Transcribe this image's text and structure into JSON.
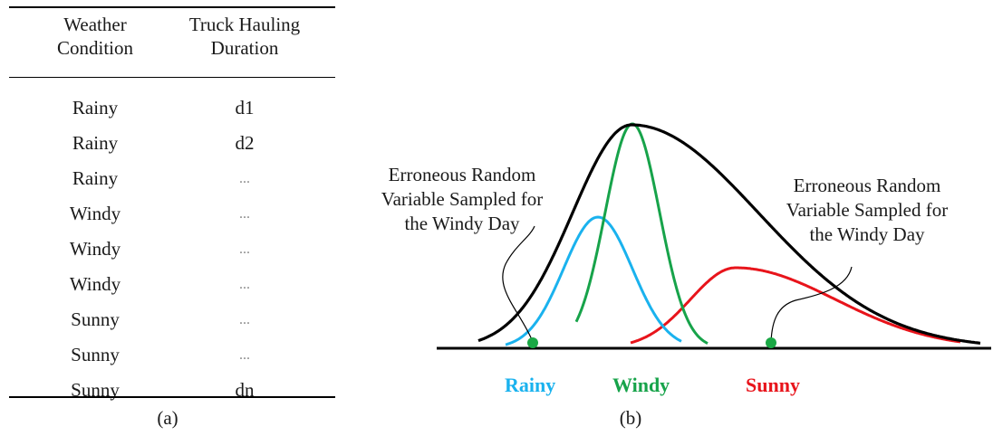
{
  "table": {
    "headers": [
      "Weather\nCondition",
      "Truck Hauling\nDuration"
    ],
    "rows": [
      [
        "Rainy",
        "d1"
      ],
      [
        "Rainy",
        "d2"
      ],
      [
        "Rainy",
        "..."
      ],
      [
        "Windy",
        "..."
      ],
      [
        "Windy",
        "..."
      ],
      [
        "Windy",
        "..."
      ],
      [
        "Sunny",
        "..."
      ],
      [
        "Sunny",
        "..."
      ],
      [
        "Sunny",
        "dn"
      ]
    ],
    "caption": "(a)"
  },
  "diagram": {
    "caption": "(b)",
    "annotation_left": "Erroneous Random\nVariable Sampled for\nthe Windy Day",
    "annotation_right": "Erroneous Random\nVariable Sampled for\nthe Windy Day",
    "labels": {
      "rainy": "Rainy",
      "windy": "Windy",
      "sunny": "Sunny"
    },
    "colors": {
      "rainy": "#1ab2ee",
      "windy": "#17a34a",
      "sunny": "#e8141b",
      "overall": "#000000",
      "sample_point": "#1aa845"
    }
  }
}
